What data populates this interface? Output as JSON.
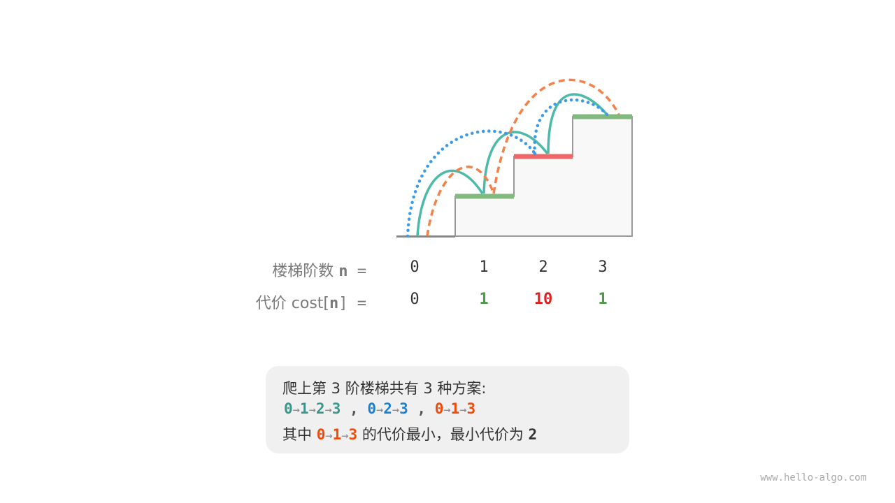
{
  "diagram": {
    "colors": {
      "path1": "#4dbaa9",
      "path2": "#3a9be8",
      "path3": "#f4804a",
      "cheap_step": "#82b97f",
      "expensive_step": "#ee6666",
      "stair_fill": "#f8f8f8",
      "stair_edge": "#999999"
    },
    "row_n_label": "楼梯阶数 ",
    "row_n_var": "n",
    "row_n_eq": " =",
    "row_cost_label": "代价 cost[",
    "row_cost_var": "n",
    "row_cost_eq": "] =",
    "steps": [
      "0",
      "1",
      "2",
      "3"
    ],
    "costs": [
      {
        "value": "0",
        "color": "#333333"
      },
      {
        "value": "1",
        "color": "#4e9a4a"
      },
      {
        "value": "10",
        "color": "#e0201c"
      },
      {
        "value": "1",
        "color": "#4e9a4a"
      }
    ]
  },
  "summary": {
    "line1": "爬上第 3 阶楼梯共有 3 种方案:",
    "arrow": "→",
    "separator": " , ",
    "paths": [
      {
        "steps": [
          "0",
          "1",
          "2",
          "3"
        ],
        "color": "#3a9688"
      },
      {
        "steps": [
          "0",
          "2",
          "3"
        ],
        "color": "#1c7fd0"
      },
      {
        "steps": [
          "0",
          "1",
          "3"
        ],
        "color": "#ee4a0a"
      }
    ],
    "line3_prefix": "其中 ",
    "line3_path": {
      "steps": [
        "0",
        "1",
        "3"
      ],
      "color": "#ee4a0a"
    },
    "line3_suffix": " 的代价最小，最小代价为 ",
    "min_cost": "2"
  },
  "watermark": "www.hello-algo.com"
}
